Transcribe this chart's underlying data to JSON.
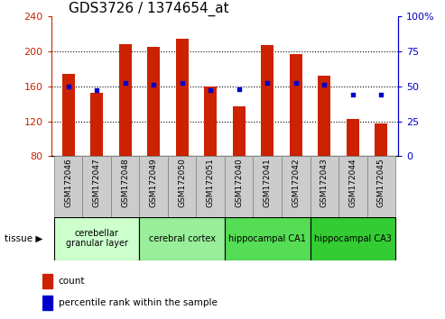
{
  "title": "GDS3726 / 1374654_at",
  "samples": [
    "GSM172046",
    "GSM172047",
    "GSM172048",
    "GSM172049",
    "GSM172050",
    "GSM172051",
    "GSM172040",
    "GSM172041",
    "GSM172042",
    "GSM172043",
    "GSM172044",
    "GSM172045"
  ],
  "counts": [
    174,
    152,
    208,
    205,
    214,
    160,
    137,
    207,
    197,
    172,
    123,
    117
  ],
  "percentiles": [
    50,
    47,
    52,
    51,
    52,
    47,
    48,
    52,
    52,
    51,
    44,
    44
  ],
  "ymin": 80,
  "ymax": 240,
  "y2min": 0,
  "y2max": 100,
  "yticks": [
    80,
    120,
    160,
    200,
    240
  ],
  "y2ticks": [
    0,
    25,
    50,
    75,
    100
  ],
  "bar_color": "#cc2200",
  "dot_color": "#0000cc",
  "bg_color": "#ffffff",
  "sample_bg": "#cccccc",
  "tissue_groups": [
    {
      "label": "cerebellar\ngranular layer",
      "start": 0,
      "end": 3,
      "color": "#ccffcc"
    },
    {
      "label": "cerebral cortex",
      "start": 3,
      "end": 6,
      "color": "#99ee99"
    },
    {
      "label": "hippocampal CA1",
      "start": 6,
      "end": 9,
      "color": "#55dd55"
    },
    {
      "label": "hippocampal CA3",
      "start": 9,
      "end": 12,
      "color": "#33cc33"
    }
  ],
  "tissue_label": "tissue ▶",
  "legend_count": "count",
  "legend_percentile": "percentile rank within the sample",
  "title_fontsize": 11,
  "tick_fontsize": 8,
  "sample_fontsize": 6.5,
  "tissue_fontsize": 7,
  "legend_fontsize": 7.5,
  "bar_width": 0.45
}
